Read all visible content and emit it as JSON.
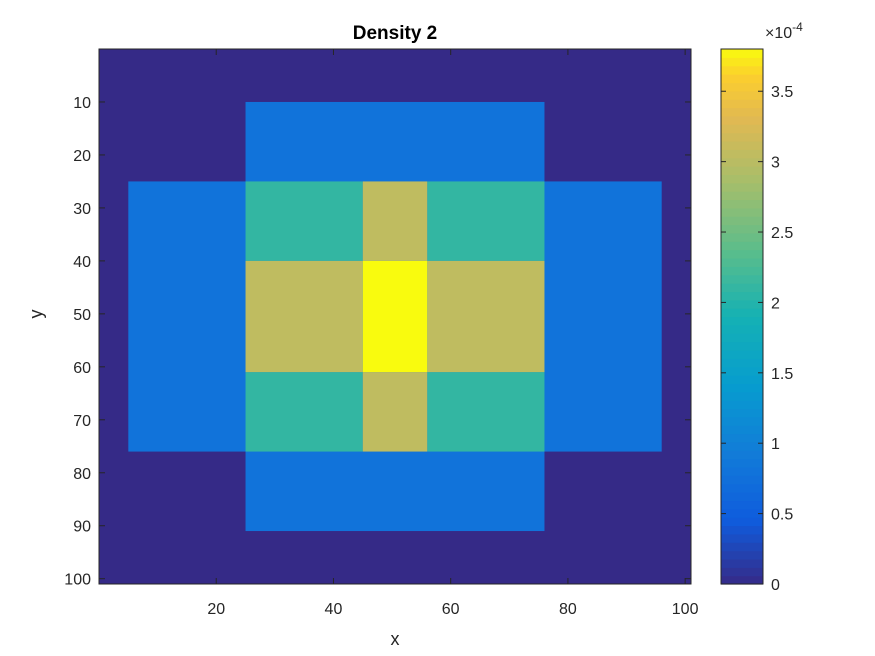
{
  "chart_data": {
    "type": "heatmap",
    "title": "Density 2",
    "xlabel": "x",
    "ylabel": "y",
    "xlim": [
      0,
      101
    ],
    "ylim": [
      0,
      101
    ],
    "y_direction": "reverse",
    "grid": false,
    "x_ticks": [
      20,
      40,
      60,
      80,
      100
    ],
    "y_ticks": [
      10,
      20,
      30,
      40,
      50,
      60,
      70,
      80,
      90,
      100
    ],
    "colormap": "parula",
    "colorbar": {
      "location": "right",
      "min": 0,
      "max": 0.00038,
      "ticks": [
        0,
        5e-05,
        0.0001,
        0.00015,
        0.0002,
        0.00025,
        0.0003,
        0.00035
      ],
      "tick_labels": [
        "0",
        "0.5",
        "1",
        "1.5",
        "2",
        "2.5",
        "3",
        "3.5"
      ],
      "exponent_label": "×10",
      "exponent_power": "-4"
    },
    "cells": [
      {
        "x0": 0,
        "x1": 101,
        "y0": 0,
        "y1": 101,
        "value": 0
      },
      {
        "x0": 25,
        "x1": 76,
        "y0": 10,
        "y1": 91,
        "value": 8e-05
      },
      {
        "x0": 5,
        "x1": 96,
        "y0": 25,
        "y1": 76,
        "value": 8e-05
      },
      {
        "x0": 25,
        "x1": 45,
        "y0": 25,
        "y1": 40,
        "value": 0.00021
      },
      {
        "x0": 56,
        "x1": 76,
        "y0": 25,
        "y1": 40,
        "value": 0.00021
      },
      {
        "x0": 25,
        "x1": 45,
        "y0": 61,
        "y1": 76,
        "value": 0.00021
      },
      {
        "x0": 56,
        "x1": 76,
        "y0": 61,
        "y1": 76,
        "value": 0.00021
      },
      {
        "x0": 45,
        "x1": 56,
        "y0": 25,
        "y1": 40,
        "value": 0.000305
      },
      {
        "x0": 45,
        "x1": 56,
        "y0": 61,
        "y1": 76,
        "value": 0.000305
      },
      {
        "x0": 25,
        "x1": 45,
        "y0": 40,
        "y1": 61,
        "value": 0.000305
      },
      {
        "x0": 56,
        "x1": 76,
        "y0": 40,
        "y1": 61,
        "value": 0.000305
      },
      {
        "x0": 45,
        "x1": 56,
        "y0": 40,
        "y1": 61,
        "value": 0.00038
      }
    ]
  }
}
